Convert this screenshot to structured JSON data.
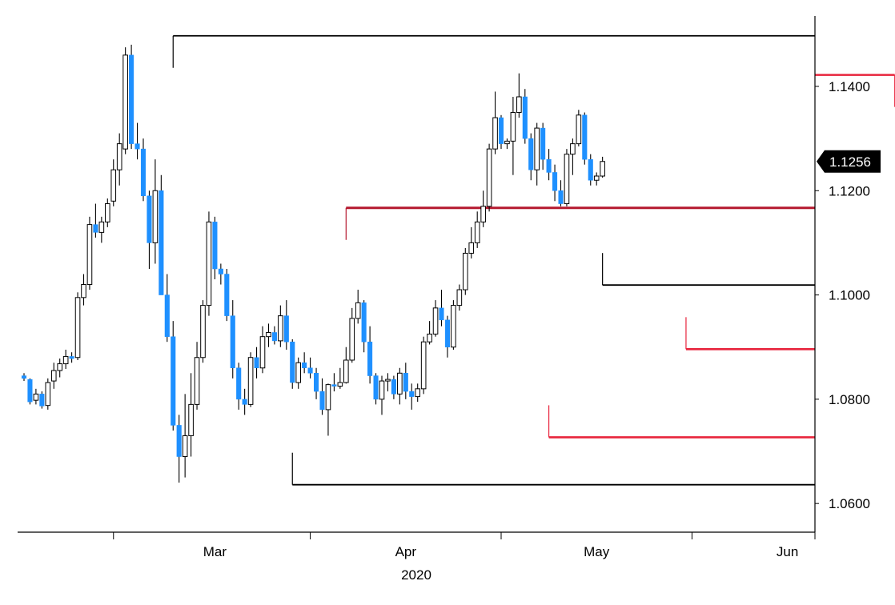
{
  "chart_data": {
    "type": "candlestick",
    "title": "",
    "xlabel": "2020",
    "ylabel": "",
    "ylim": [
      1.0545,
      1.1535
    ],
    "yticks": [
      "1.1400",
      "1.1200",
      "1.1000",
      "1.0800",
      "1.0600"
    ],
    "xticks": [
      "Mar",
      "Apr",
      "May",
      "Jun"
    ],
    "grid": false,
    "colors": {
      "up_body": "#ffffff",
      "down_body": "#1e90ff",
      "outline": "#000000",
      "line_black": "#000000",
      "line_red": "#e8243c",
      "line_dark_red": "#b5192f",
      "tag_bg": "#000000"
    },
    "last_price": {
      "label": "1.1256",
      "value": 1.1256
    },
    "horizontal_lines": [
      {
        "value": 1.1497,
        "start_index": 25,
        "color": "#000000"
      },
      {
        "value": 1.1422,
        "start_index": 146,
        "color": "#e8243c"
      },
      {
        "value": 1.1167,
        "start_index": 54,
        "color": "#b5192f"
      },
      {
        "value": 1.1019,
        "start_index": 97,
        "color": "#000000"
      },
      {
        "value": 1.0896,
        "start_index": 111,
        "color": "#e8243c"
      },
      {
        "value": 1.0727,
        "start_index": 88,
        "color": "#e8243c"
      },
      {
        "value": 1.0636,
        "start_index": 45,
        "color": "#000000"
      }
    ],
    "month_tick_indices": [
      15,
      48,
      80,
      112
    ],
    "month_label_indices": [
      32,
      64,
      96,
      128
    ],
    "candles": [
      [
        1.0845,
        1.085,
        1.0835,
        1.084
      ],
      [
        1.0838,
        1.084,
        1.079,
        1.0795
      ],
      [
        1.0798,
        1.082,
        1.079,
        1.081
      ],
      [
        1.081,
        1.0815,
        1.0782,
        1.0787
      ],
      [
        1.0788,
        1.084,
        1.078,
        1.0832
      ],
      [
        1.0835,
        1.087,
        1.082,
        1.0855
      ],
      [
        1.0855,
        1.0878,
        1.0842,
        1.0868
      ],
      [
        1.0868,
        1.0895,
        1.0858,
        1.0882
      ],
      [
        1.0882,
        1.089,
        1.087,
        1.0878
      ],
      [
        1.088,
        1.1005,
        1.0875,
        1.0995
      ],
      [
        1.0995,
        1.104,
        1.098,
        1.102
      ],
      [
        1.102,
        1.115,
        1.101,
        1.1135
      ],
      [
        1.1135,
        1.1175,
        1.111,
        1.112
      ],
      [
        1.112,
        1.115,
        1.11,
        1.114
      ],
      [
        1.114,
        1.1185,
        1.113,
        1.1175
      ],
      [
        1.118,
        1.126,
        1.117,
        1.124
      ],
      [
        1.124,
        1.131,
        1.121,
        1.129
      ],
      [
        1.128,
        1.1475,
        1.127,
        1.146
      ],
      [
        1.146,
        1.148,
        1.128,
        1.129
      ],
      [
        1.129,
        1.133,
        1.126,
        1.128
      ],
      [
        1.128,
        1.13,
        1.118,
        1.119
      ],
      [
        1.119,
        1.12,
        1.105,
        1.11
      ],
      [
        1.11,
        1.126,
        1.106,
        1.12
      ],
      [
        1.12,
        1.123,
        1.1,
        1.1
      ],
      [
        1.1,
        1.104,
        1.091,
        1.092
      ],
      [
        1.092,
        1.095,
        1.074,
        1.075
      ],
      [
        1.075,
        1.077,
        1.064,
        1.069
      ],
      [
        1.069,
        1.081,
        1.065,
        1.073
      ],
      [
        1.073,
        1.085,
        1.069,
        1.079
      ],
      [
        1.079,
        1.091,
        1.078,
        1.088
      ],
      [
        1.088,
        1.099,
        1.087,
        1.098
      ],
      [
        1.098,
        1.116,
        1.096,
        1.114
      ],
      [
        1.114,
        1.115,
        1.103,
        1.105
      ],
      [
        1.105,
        1.106,
        1.102,
        1.104
      ],
      [
        1.104,
        1.105,
        1.095,
        1.096
      ],
      [
        1.096,
        1.099,
        1.084,
        1.086
      ],
      [
        1.086,
        1.087,
        1.078,
        1.08
      ],
      [
        1.08,
        1.082,
        1.077,
        1.079
      ],
      [
        1.079,
        1.089,
        1.0785,
        1.088
      ],
      [
        1.088,
        1.09,
        1.084,
        1.086
      ],
      [
        1.086,
        1.094,
        1.085,
        1.092
      ],
      [
        1.092,
        1.0945,
        1.09,
        1.0928
      ],
      [
        1.0928,
        1.094,
        1.0905,
        1.0912
      ],
      [
        1.0912,
        1.098,
        1.09,
        1.096
      ],
      [
        1.096,
        1.099,
        1.0895,
        1.091
      ],
      [
        1.091,
        1.0915,
        1.082,
        1.0832
      ],
      [
        1.0832,
        1.088,
        1.082,
        1.087
      ],
      [
        1.087,
        1.089,
        1.085,
        1.086
      ],
      [
        1.086,
        1.088,
        1.084,
        1.085
      ],
      [
        1.085,
        1.086,
        1.08,
        1.0815
      ],
      [
        1.0815,
        1.084,
        1.077,
        1.078
      ],
      [
        1.078,
        1.083,
        1.073,
        1.0828
      ],
      [
        1.0828,
        1.085,
        1.0815,
        1.0825
      ],
      [
        1.0825,
        1.086,
        1.082,
        1.0832
      ],
      [
        1.0832,
        1.09,
        1.083,
        1.0875
      ],
      [
        1.0875,
        1.0975,
        1.087,
        1.0955
      ],
      [
        1.0955,
        1.101,
        1.0945,
        1.0985
      ],
      [
        1.0985,
        1.099,
        1.089,
        1.091
      ],
      [
        1.091,
        1.094,
        1.083,
        1.0845
      ],
      [
        1.0845,
        1.085,
        1.079,
        1.08
      ],
      [
        1.08,
        1.0845,
        1.077,
        1.0835
      ],
      [
        1.0835,
        1.085,
        1.0815,
        1.0838
      ],
      [
        1.0838,
        1.0845,
        1.08,
        1.081
      ],
      [
        1.081,
        1.086,
        1.079,
        1.085
      ],
      [
        1.085,
        1.087,
        1.08,
        1.0815
      ],
      [
        1.0815,
        1.083,
        1.078,
        1.0805
      ],
      [
        1.0805,
        1.083,
        1.0795,
        1.082
      ],
      [
        1.082,
        1.092,
        1.081,
        1.091
      ],
      [
        1.091,
        1.095,
        1.0905,
        1.0925
      ],
      [
        1.0925,
        1.099,
        1.092,
        1.0975
      ],
      [
        1.0975,
        1.101,
        1.094,
        1.0952
      ],
      [
        1.0952,
        1.096,
        1.088,
        1.09
      ],
      [
        1.09,
        1.099,
        1.0895,
        1.098
      ],
      [
        1.098,
        1.102,
        1.097,
        1.101
      ],
      [
        1.101,
        1.109,
        1.1,
        1.108
      ],
      [
        1.108,
        1.113,
        1.107,
        1.11
      ],
      [
        1.11,
        1.116,
        1.109,
        1.114
      ],
      [
        1.114,
        1.12,
        1.113,
        1.117
      ],
      [
        1.117,
        1.129,
        1.116,
        1.128
      ],
      [
        1.128,
        1.139,
        1.127,
        1.134
      ],
      [
        1.134,
        1.1345,
        1.128,
        1.129
      ],
      [
        1.129,
        1.13,
        1.128,
        1.1295
      ],
      [
        1.1295,
        1.138,
        1.123,
        1.135
      ],
      [
        1.135,
        1.1425,
        1.134,
        1.138
      ],
      [
        1.138,
        1.1395,
        1.129,
        1.13
      ],
      [
        1.13,
        1.131,
        1.122,
        1.124
      ],
      [
        1.124,
        1.133,
        1.121,
        1.132
      ],
      [
        1.132,
        1.133,
        1.124,
        1.126
      ],
      [
        1.126,
        1.128,
        1.122,
        1.1235
      ],
      [
        1.1235,
        1.125,
        1.118,
        1.12
      ],
      [
        1.12,
        1.122,
        1.117,
        1.1175
      ],
      [
        1.1175,
        1.128,
        1.117,
        1.127
      ],
      [
        1.127,
        1.13,
        1.123,
        1.129
      ],
      [
        1.129,
        1.1355,
        1.1285,
        1.1345
      ],
      [
        1.1345,
        1.135,
        1.125,
        1.126
      ],
      [
        1.126,
        1.127,
        1.121,
        1.122
      ],
      [
        1.122,
        1.1235,
        1.121,
        1.1228
      ],
      [
        1.1228,
        1.1265,
        1.1225,
        1.1256
      ]
    ]
  }
}
